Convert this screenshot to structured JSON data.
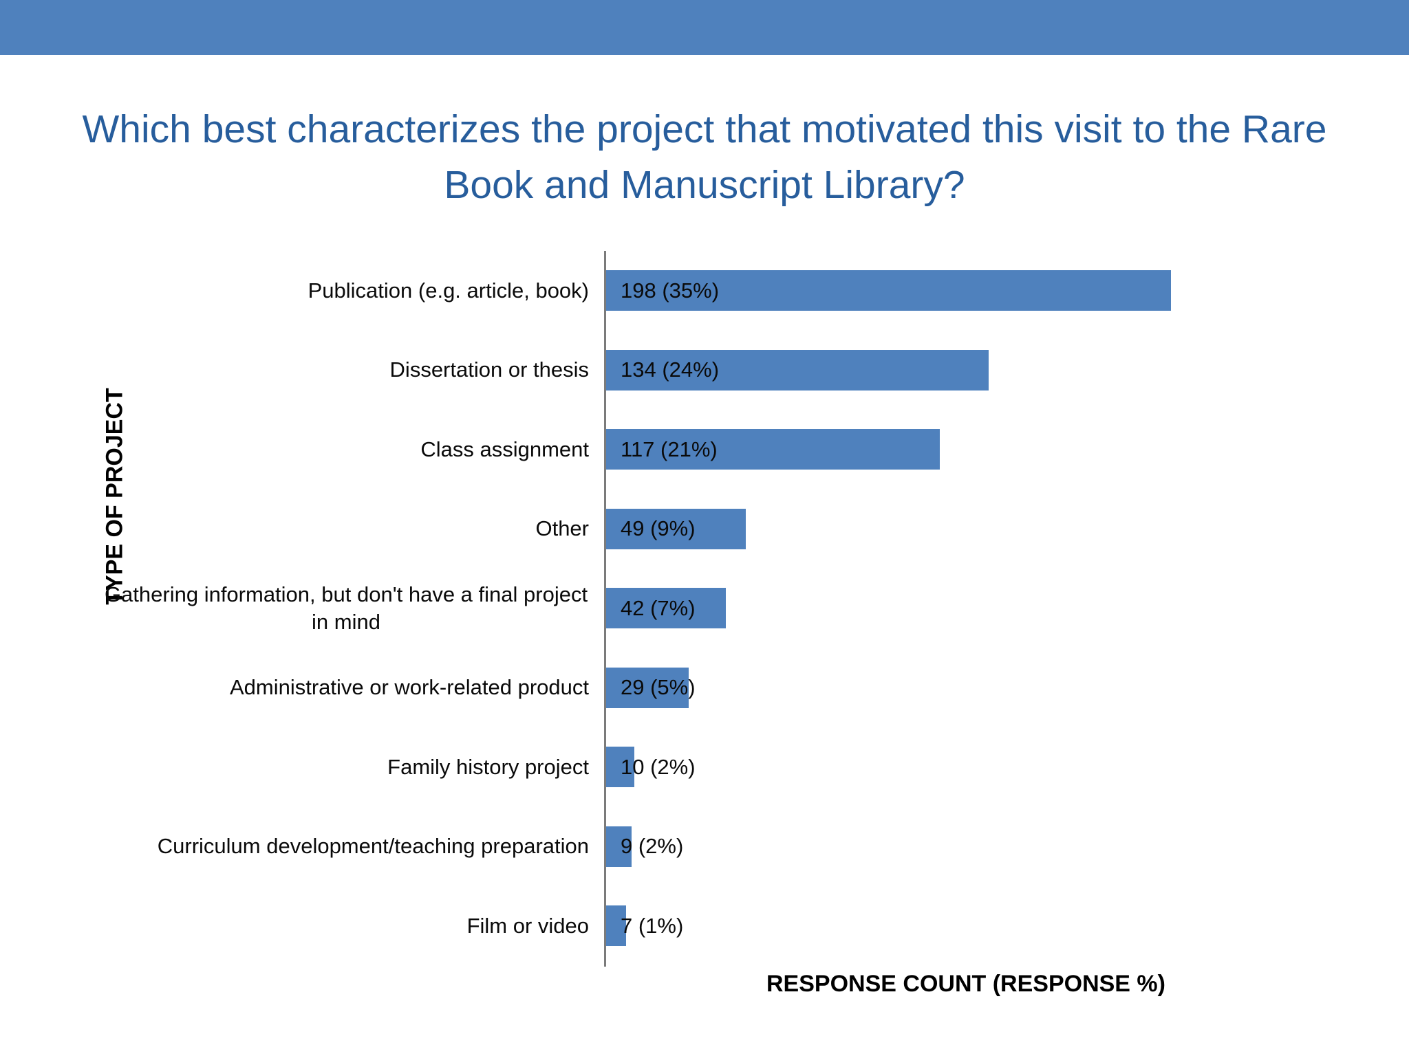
{
  "slide": {
    "banner_color": "#4F81BD",
    "background_color": "#FFFFFF"
  },
  "chart_data": {
    "type": "bar",
    "orientation": "horizontal",
    "title": "Which best characterizes the project that motivated this visit to the Rare Book and Manuscript Library?",
    "xlabel": "RESPONSE COUNT (RESPONSE %)",
    "ylabel": "TYPE OF PROJECT",
    "categories": [
      "Publication (e.g. article, book)",
      "Dissertation or thesis",
      "Class assignment",
      "Other",
      "Gathering information, but don't have a final project in mind",
      "Administrative or work-related product",
      "Family history project",
      "Curriculum development/teaching preparation",
      "Film or video"
    ],
    "values": [
      198,
      134,
      117,
      49,
      42,
      29,
      10,
      9,
      7
    ],
    "percents": [
      35,
      24,
      21,
      9,
      7,
      5,
      2,
      2,
      1
    ],
    "data_labels": [
      "198 (35%)",
      "134 (24%)",
      "117 (21%)",
      "49 (9%)",
      "42 (7%)",
      "29 (5%)",
      "10 (2%)",
      "9 (2%)",
      "7 (1%)"
    ],
    "xlim": [
      0,
      200
    ],
    "grid": false,
    "legend": false,
    "tick_labels_shown": false,
    "bar_color": "#4F81BD",
    "title_color": "#275D9C",
    "axis_line_color": "#7B7B7B",
    "label_color": "#0A0A0A"
  }
}
